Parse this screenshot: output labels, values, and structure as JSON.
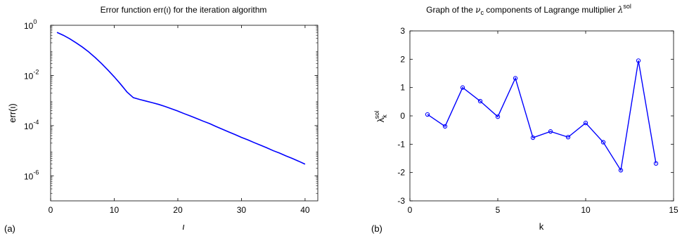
{
  "chart_data": [
    {
      "type": "line",
      "panel_label": "(a)",
      "title": "Error function err(ι) for the iteration algorithm",
      "xlabel": "ι",
      "ylabel": "err(ι)",
      "yscale": "log",
      "xlim": [
        0,
        42
      ],
      "ylim": [
        1e-07,
        1
      ],
      "x_ticks": [
        0,
        10,
        20,
        30,
        40
      ],
      "x_tick_labels": [
        "0",
        "10",
        "20",
        "30",
        "40"
      ],
      "y_ticks": [
        1e-06,
        0.0001,
        0.01,
        1
      ],
      "y_tick_labels": [
        {
          "base": "10",
          "exp": "-6"
        },
        {
          "base": "10",
          "exp": "-4"
        },
        {
          "base": "10",
          "exp": "-2"
        },
        {
          "base": "10",
          "exp": "0"
        }
      ],
      "color": "#0000ff",
      "grid": false,
      "series": [
        {
          "x": [
            1,
            2,
            3,
            4,
            5,
            6,
            7,
            8,
            9,
            10,
            11,
            12,
            13,
            14,
            15,
            16,
            17,
            18,
            19,
            20,
            21,
            22,
            23,
            24,
            25,
            26,
            27,
            28,
            29,
            30,
            31,
            32,
            33,
            34,
            35,
            36,
            37,
            38,
            39,
            40
          ],
          "y": [
            0.52,
            0.4,
            0.29,
            0.2,
            0.135,
            0.086,
            0.052,
            0.03,
            0.0165,
            0.0088,
            0.0045,
            0.0022,
            0.0013,
            0.0011,
            0.00095,
            0.00082,
            0.0007,
            0.00058,
            0.00047,
            0.00038,
            0.0003,
            0.00024,
            0.00019,
            0.00015,
            0.00012,
            9.2e-05,
            7.2e-05,
            5.6e-05,
            4.4e-05,
            3.4e-05,
            2.7e-05,
            2.1e-05,
            1.65e-05,
            1.3e-05,
            1e-05,
            8e-06,
            6.2e-06,
            4.9e-06,
            3.8e-06,
            2.9e-06
          ]
        }
      ]
    },
    {
      "type": "line",
      "panel_label": "(b)",
      "title_main": "Graph of the ",
      "title_nu": "ν",
      "title_c": "c",
      "title_mid": " components of Lagrange multiplier ",
      "title_lambda": "λ",
      "title_sol": "sol",
      "xlabel": "k",
      "ylabel_base": "λ",
      "ylabel_sub": "k",
      "ylabel_sup": "sol",
      "xlim": [
        0,
        15
      ],
      "ylim": [
        -3,
        3
      ],
      "x_ticks": [
        0,
        5,
        10,
        15
      ],
      "x_tick_labels": [
        "0",
        "5",
        "10",
        "15"
      ],
      "y_ticks": [
        -3,
        -2,
        -1,
        0,
        1,
        2,
        3
      ],
      "y_tick_labels": [
        "-3",
        "-2",
        "-1",
        "0",
        "1",
        "2",
        "3"
      ],
      "color": "#0000ff",
      "marker": "circle",
      "grid": false,
      "series": [
        {
          "x": [
            1,
            2,
            3,
            4,
            5,
            6,
            7,
            8,
            9,
            10,
            11,
            12,
            13,
            14
          ],
          "y": [
            0.05,
            -0.37,
            1.0,
            0.52,
            -0.03,
            1.33,
            -0.77,
            -0.55,
            -0.75,
            -0.25,
            -0.93,
            -1.92,
            1.95,
            -1.68
          ]
        }
      ]
    }
  ]
}
